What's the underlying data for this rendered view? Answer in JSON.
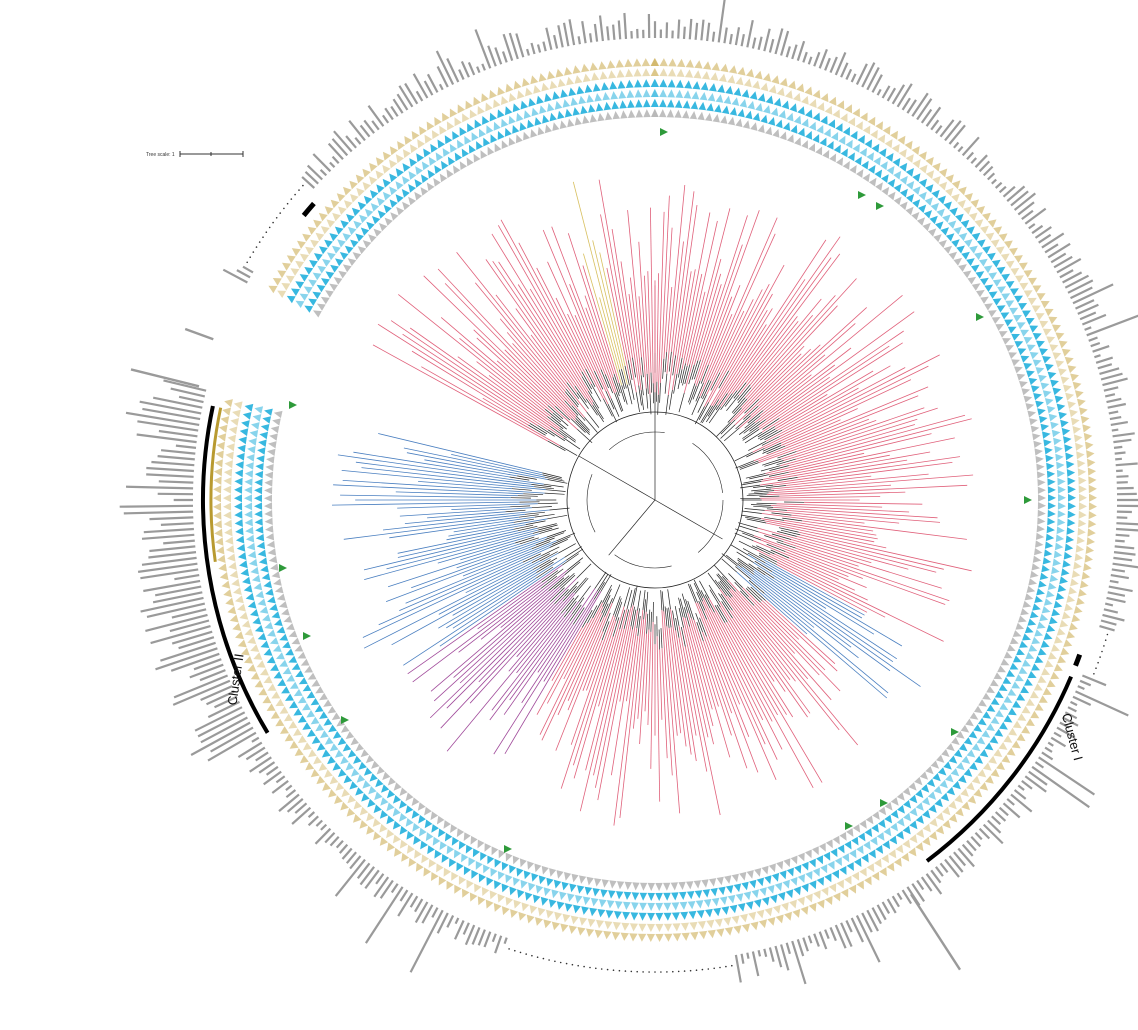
{
  "figure": {
    "scale_label": "Tree scale: 1",
    "clusters": [
      {
        "label": "Cluster I"
      },
      {
        "label": "Cluster II"
      }
    ]
  },
  "colors": {
    "clade_red": "#e0607a",
    "clade_blue": "#4a7fc0",
    "clade_purple": "#a04a9a",
    "clade_yellow": "#d8c060",
    "branch_black": "#222222",
    "ring_gold": "#c8a848",
    "ring_blue": "#38b8e0",
    "ring_gray": "#b8b8b8",
    "marker_green": "#2e9a3a",
    "bar_gray": "#9a9a9a"
  }
}
